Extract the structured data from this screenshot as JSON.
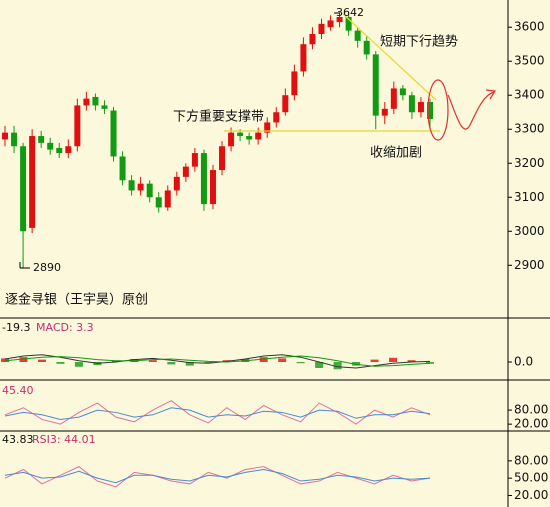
{
  "chart_data": [
    {
      "type": "candlestick",
      "annotations": [
        "3642",
        "2890",
        "短期下行趋势",
        "下方重要支撑带",
        "收缩加剧",
        "逐金寻银（王宇昊）原创"
      ],
      "up_color": "#e01010",
      "down_color": "#139a13",
      "open": [
        3270,
        3290,
        3250,
        3010,
        3280,
        3260,
        3245,
        3230,
        3250,
        3370,
        3395,
        3370,
        3355,
        3220,
        3150,
        3120,
        3140,
        3100,
        3070,
        3120,
        3160,
        3190,
        3230,
        3080,
        3180,
        3250,
        3290,
        3280,
        3270,
        3290,
        3320,
        3350,
        3400,
        3470,
        3550,
        3580,
        3600,
        3615,
        3630,
        3590,
        3560,
        3520,
        3340,
        3360,
        3420,
        3400,
        3350,
        3380
      ],
      "high": [
        3310,
        3310,
        3260,
        3300,
        3295,
        3275,
        3260,
        3270,
        3390,
        3410,
        3405,
        3385,
        3365,
        3235,
        3165,
        3160,
        3150,
        3115,
        3135,
        3175,
        3200,
        3245,
        3240,
        3195,
        3265,
        3305,
        3300,
        3290,
        3305,
        3335,
        3365,
        3420,
        3490,
        3570,
        3600,
        3625,
        3635,
        3642,
        3640,
        3600,
        3575,
        3530,
        3380,
        3440,
        3430,
        3410,
        3395,
        3390
      ],
      "low": [
        3250,
        3230,
        2890,
        2995,
        3245,
        3225,
        3215,
        3215,
        3235,
        3355,
        3355,
        3345,
        3205,
        3135,
        3105,
        3105,
        3085,
        3055,
        3060,
        3105,
        3145,
        3175,
        3060,
        3065,
        3165,
        3235,
        3265,
        3255,
        3255,
        3275,
        3305,
        3340,
        3385,
        3455,
        3535,
        3565,
        3590,
        3600,
        3575,
        3540,
        3505,
        3300,
        3315,
        3345,
        3385,
        3330,
        3335,
        3300
      ],
      "close": [
        3290,
        3250,
        3000,
        3280,
        3260,
        3240,
        3230,
        3250,
        3370,
        3390,
        3370,
        3360,
        3220,
        3150,
        3120,
        3140,
        3100,
        3070,
        3120,
        3160,
        3190,
        3230,
        3080,
        3180,
        3250,
        3290,
        3280,
        3270,
        3290,
        3320,
        3350,
        3400,
        3470,
        3550,
        3580,
        3610,
        3620,
        3630,
        3590,
        3560,
        3520,
        3340,
        3360,
        3420,
        3400,
        3350,
        3380,
        3330
      ],
      "ylim": [
        2745,
        3680
      ],
      "yticks": [
        2900,
        3000,
        3100,
        3200,
        3300,
        3400,
        3500,
        3600
      ]
    },
    {
      "type": "macd",
      "label": "-19.3",
      "label2": "MACD: 3.3",
      "up_color": "#e01010",
      "down_color": "#139a13",
      "histogram": [
        6,
        8,
        4,
        -3,
        -8,
        -5,
        2,
        5,
        3,
        -4,
        -6,
        -2,
        3,
        5,
        8,
        6,
        -2,
        -10,
        -12,
        -6,
        4,
        7,
        3,
        -3
      ],
      "series": [
        {
          "color": "#333333",
          "values": [
            5,
            10,
            12,
            8,
            2,
            -2,
            0,
            4,
            6,
            3,
            -1,
            -2,
            1,
            5,
            10,
            12,
            8,
            0,
            -8,
            -10,
            -6,
            -2,
            0,
            1
          ]
        },
        {
          "color": "#119911",
          "values": [
            2,
            5,
            8,
            9,
            7,
            4,
            2,
            2,
            4,
            5,
            3,
            1,
            0,
            2,
            5,
            8,
            10,
            7,
            2,
            -4,
            -7,
            -6,
            -4,
            -2
          ]
        }
      ],
      "ylim": [
        -30,
        70
      ],
      "yticks": [
        {
          "value": 0,
          "label": "0.0"
        }
      ]
    },
    {
      "type": "line",
      "label": "45.40",
      "series": [
        {
          "color": "#e070a0",
          "values": [
            60,
            90,
            40,
            20,
            70,
            110,
            50,
            30,
            80,
            120,
            60,
            25,
            90,
            40,
            100,
            60,
            30,
            110,
            70,
            20,
            80,
            50,
            90,
            60
          ]
        },
        {
          "color": "#4a8bd0",
          "values": [
            55,
            70,
            60,
            40,
            50,
            80,
            70,
            50,
            60,
            90,
            80,
            50,
            60,
            55,
            75,
            70,
            50,
            80,
            75,
            45,
            60,
            60,
            75,
            65
          ]
        }
      ],
      "ylim": [
        -5,
        200
      ],
      "yticks": [
        {
          "value": 20,
          "label": "20.00"
        },
        {
          "value": 80,
          "label": "80.00"
        }
      ]
    },
    {
      "type": "line",
      "label": "43.83",
      "label2": "RSI3: 44.01",
      "series": [
        {
          "color": "#e070a0",
          "values": [
            50,
            65,
            40,
            55,
            70,
            45,
            35,
            60,
            55,
            45,
            40,
            60,
            50,
            65,
            70,
            55,
            40,
            45,
            60,
            50,
            40,
            55,
            45,
            50
          ]
        },
        {
          "color": "#4a8bd0",
          "values": [
            55,
            60,
            50,
            52,
            62,
            50,
            42,
            55,
            55,
            48,
            45,
            55,
            52,
            60,
            65,
            58,
            45,
            48,
            55,
            52,
            45,
            50,
            48,
            50
          ]
        }
      ],
      "ylim": [
        0,
        130
      ],
      "yticks": [
        {
          "value": 20,
          "label": "20.00"
        },
        {
          "value": 50,
          "label": "50.00"
        },
        {
          "value": 80,
          "label": "80.00"
        }
      ]
    }
  ]
}
